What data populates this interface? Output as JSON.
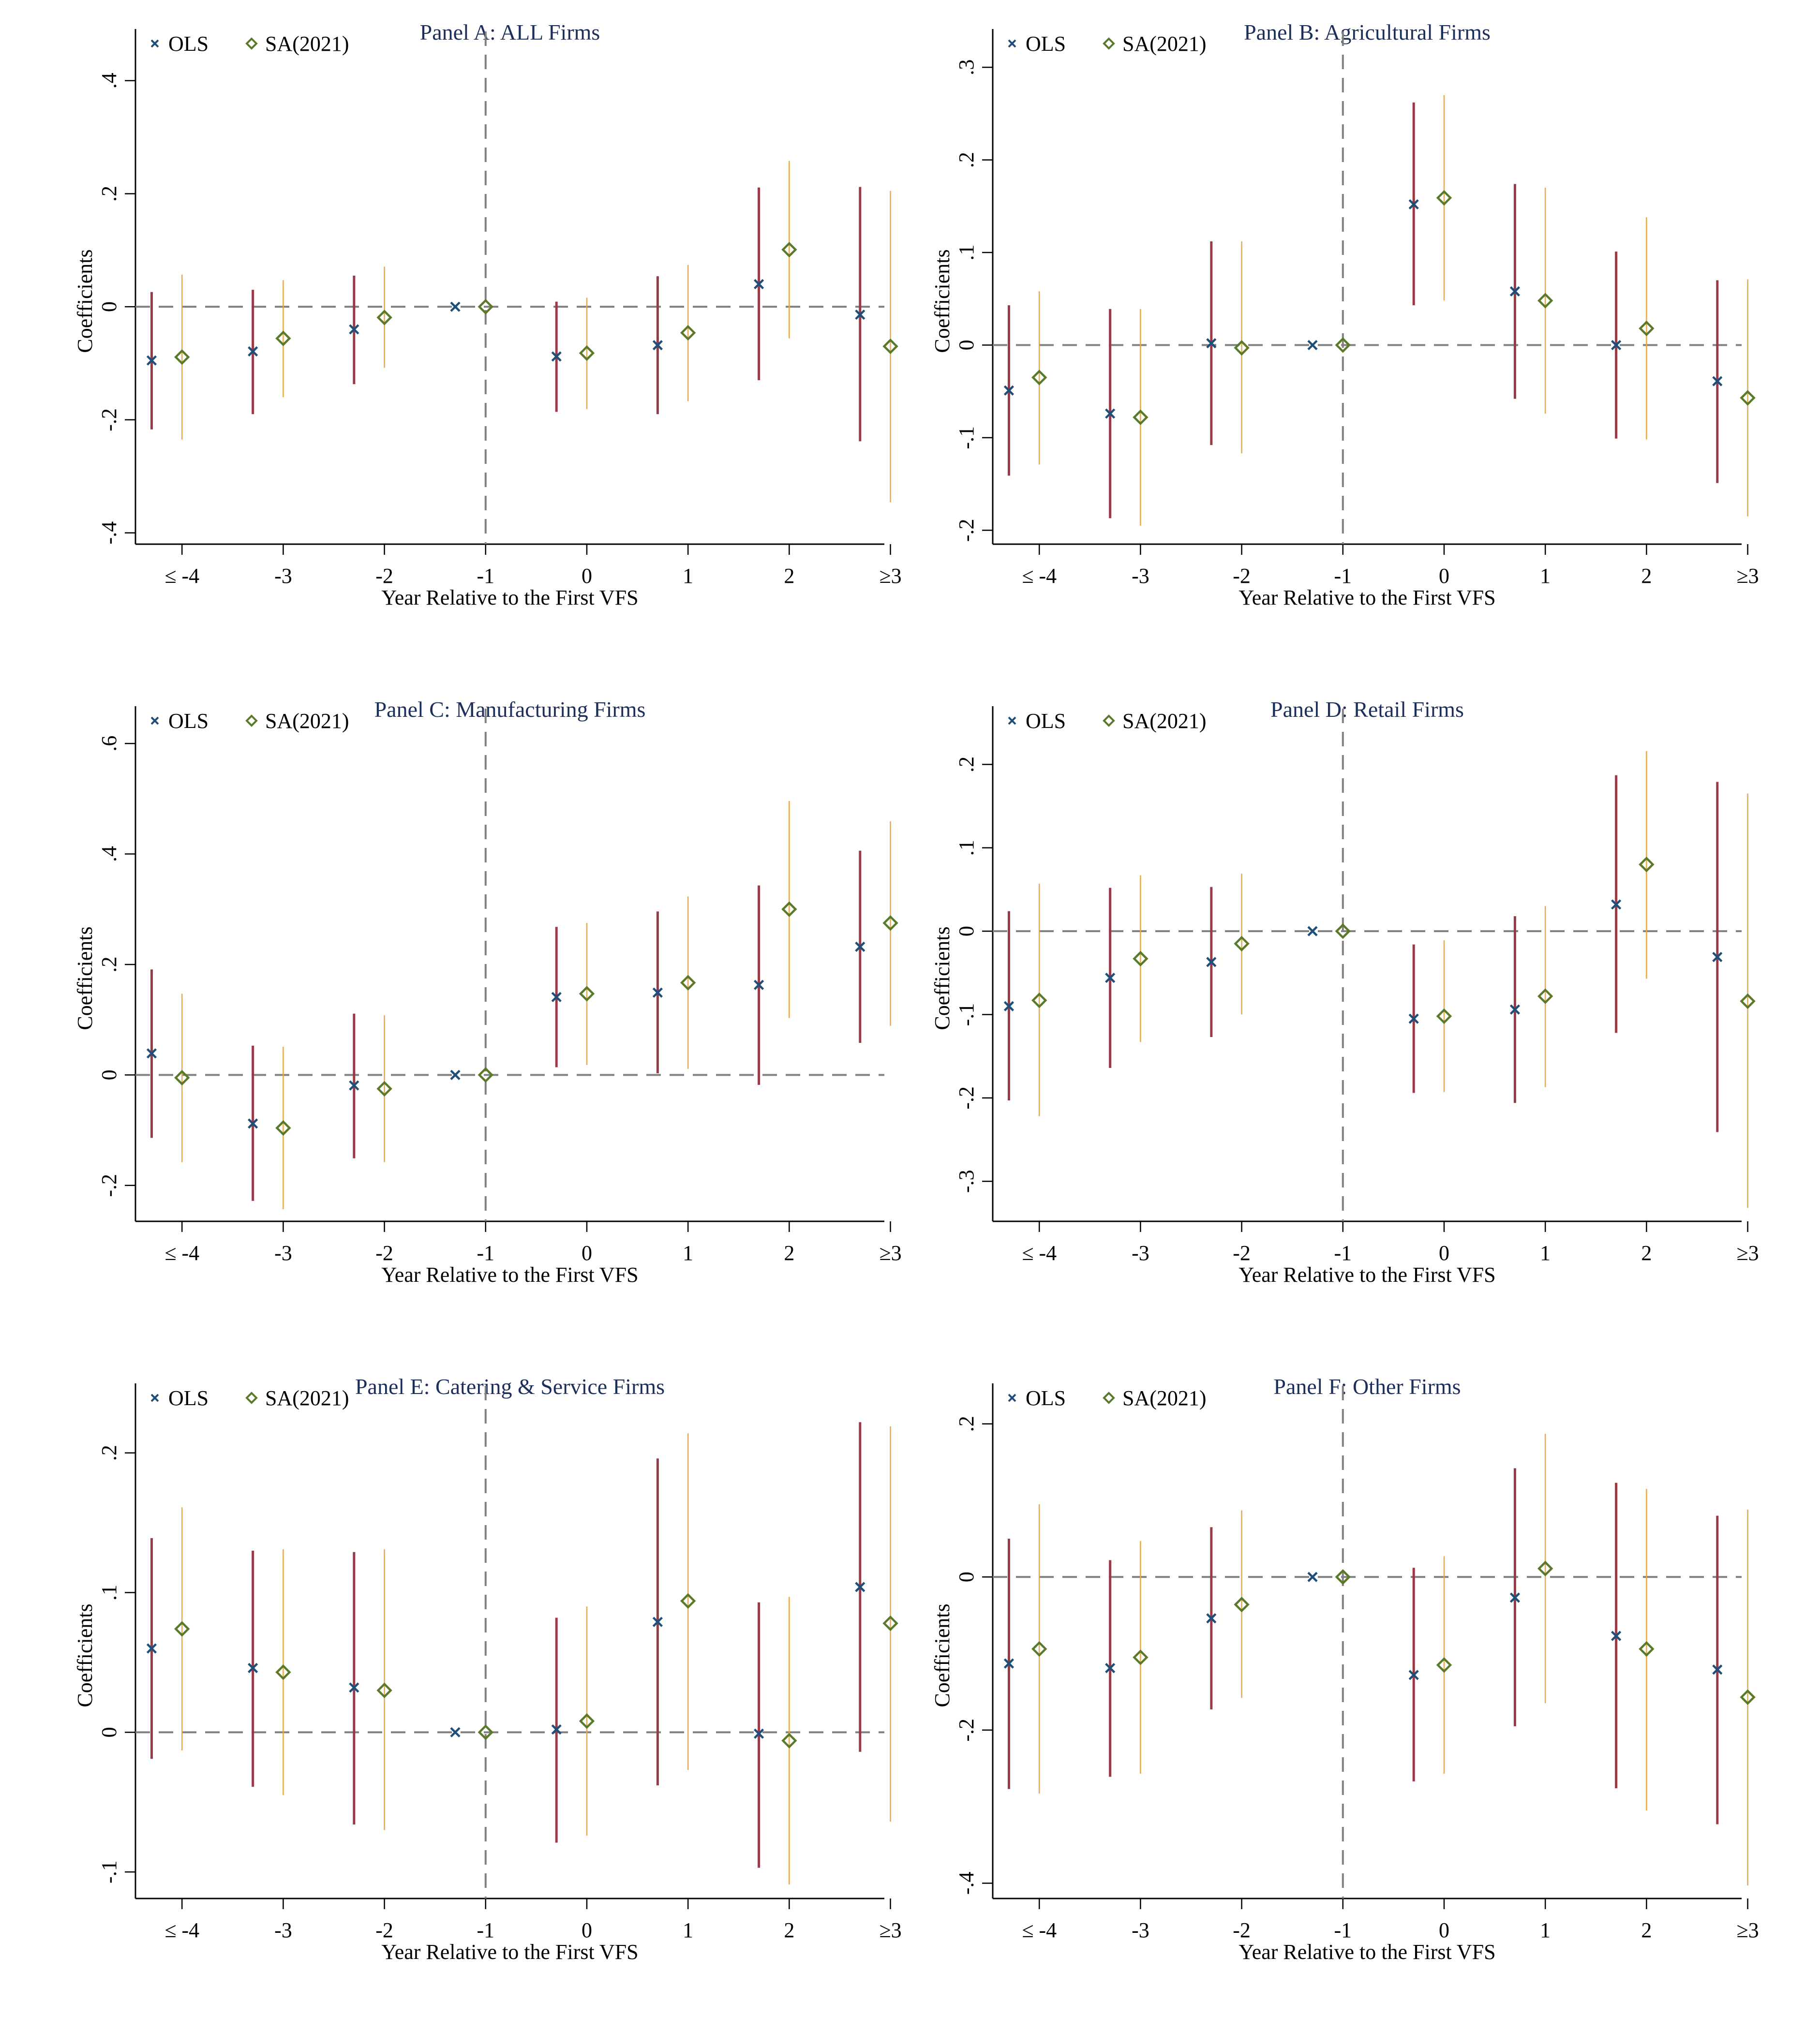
{
  "figure": {
    "colors": {
      "title": "#1c2e5a",
      "ols_marker": "#1f4e79",
      "ols_ci": "#9b3a47",
      "sa_marker": "#5a7a2a",
      "sa_ci": "#e8a84a",
      "ref_line": "#808080"
    }
  },
  "chart_data": [
    {
      "type": "scatter",
      "title": "Panel A: ALL Firms",
      "xlabel": "Year Relative to the First VFS",
      "ylabel": "Coefficients",
      "categories": [
        "≤ -4",
        "-3",
        "-2",
        "-1",
        "0",
        "1",
        "2",
        "≥3"
      ],
      "yticks": [
        0.4,
        0.2,
        0,
        -0.2,
        -0.4
      ],
      "ytick_labels": [
        ".4",
        ".2",
        "0",
        "-.2",
        "-.4"
      ],
      "ylim": [
        -0.42,
        0.44
      ],
      "reference_lines": {
        "y": 0,
        "x_category": "-1"
      },
      "legend": {
        "position": "top-left",
        "entries": [
          "OLS",
          "SA(2021)"
        ]
      },
      "series": [
        {
          "name": "OLS",
          "marker": "x",
          "values": [
            -0.095,
            -0.079,
            -0.04,
            0,
            -0.088,
            -0.068,
            0.04,
            -0.014
          ],
          "ci_upper": [
            0.026,
            0.03,
            0.055,
            null,
            0.009,
            0.054,
            0.211,
            0.212
          ],
          "ci_lower": [
            -0.217,
            -0.19,
            -0.137,
            null,
            -0.186,
            -0.19,
            -0.13,
            -0.238
          ]
        },
        {
          "name": "SA(2021)",
          "marker": "diamond",
          "values": [
            -0.089,
            -0.056,
            -0.019,
            0,
            -0.082,
            -0.046,
            0.101,
            -0.07
          ],
          "ci_upper": [
            0.057,
            0.047,
            0.071,
            null,
            0.016,
            0.074,
            0.258,
            0.205
          ],
          "ci_lower": [
            -0.235,
            -0.16,
            -0.108,
            null,
            -0.181,
            -0.167,
            -0.056,
            -0.346
          ]
        }
      ]
    },
    {
      "type": "scatter",
      "title": "Panel B: Agricultural Firms",
      "xlabel": "Year Relative to the First VFS",
      "ylabel": "Coefficients",
      "categories": [
        "≤ -4",
        "-3",
        "-2",
        "-1",
        "0",
        "1",
        "2",
        "≥3"
      ],
      "yticks": [
        0.3,
        0.2,
        0.1,
        0,
        -0.1,
        -0.2
      ],
      "ytick_labels": [
        ".3",
        ".2",
        ".1",
        "0",
        "-.1",
        "-.2"
      ],
      "ylim": [
        -0.215,
        0.31
      ],
      "reference_lines": {
        "y": 0,
        "x_category": "-1"
      },
      "legend": {
        "position": "top-left",
        "entries": [
          "OLS",
          "SA(2021)"
        ]
      },
      "series": [
        {
          "name": "OLS",
          "marker": "x",
          "values": [
            -0.049,
            -0.074,
            0.002,
            0,
            0.152,
            0.058,
            0.0,
            -0.039
          ],
          "ci_upper": [
            0.043,
            0.039,
            0.112,
            null,
            0.262,
            0.174,
            0.101,
            0.07
          ],
          "ci_lower": [
            -0.141,
            -0.187,
            -0.108,
            null,
            0.043,
            -0.058,
            -0.101,
            -0.149
          ]
        },
        {
          "name": "SA(2021)",
          "marker": "diamond",
          "values": [
            -0.035,
            -0.078,
            -0.003,
            0,
            0.159,
            0.048,
            0.018,
            -0.057
          ],
          "ci_upper": [
            0.058,
            0.039,
            0.112,
            null,
            0.27,
            0.17,
            0.138,
            0.071
          ],
          "ci_lower": [
            -0.129,
            -0.195,
            -0.117,
            null,
            0.048,
            -0.074,
            -0.102,
            -0.185
          ]
        }
      ]
    },
    {
      "type": "scatter",
      "title": "Panel C: Manufacturing Firms",
      "xlabel": "Year Relative to the First VFS",
      "ylabel": "Coefficients",
      "categories": [
        "≤ -4",
        "-3",
        "-2",
        "-1",
        "0",
        "1",
        "2",
        "≥3"
      ],
      "yticks": [
        0.6,
        0.4,
        0.2,
        0,
        -0.2
      ],
      "ytick_labels": [
        ".6",
        ".4",
        ".2",
        "0",
        "-.2"
      ],
      "ylim": [
        -0.265,
        0.615
      ],
      "reference_lines": {
        "y": 0,
        "x_category": "-1"
      },
      "legend": {
        "position": "top-left",
        "entries": [
          "OLS",
          "SA(2021)"
        ]
      },
      "series": [
        {
          "name": "OLS",
          "marker": "x",
          "values": [
            0.039,
            -0.088,
            -0.019,
            0,
            0.141,
            0.149,
            0.163,
            0.232
          ],
          "ci_upper": [
            0.191,
            0.053,
            0.111,
            null,
            0.268,
            0.296,
            0.343,
            0.406
          ],
          "ci_lower": [
            -0.114,
            -0.228,
            -0.151,
            null,
            0.014,
            0.003,
            -0.018,
            0.058
          ]
        },
        {
          "name": "SA(2021)",
          "marker": "diamond",
          "values": [
            -0.005,
            -0.096,
            -0.025,
            0,
            0.147,
            0.167,
            0.3,
            0.275
          ],
          "ci_upper": [
            0.147,
            0.051,
            0.108,
            null,
            0.275,
            0.323,
            0.496,
            0.459
          ],
          "ci_lower": [
            -0.158,
            -0.243,
            -0.158,
            null,
            0.018,
            0.011,
            0.103,
            0.089
          ]
        }
      ]
    },
    {
      "type": "scatter",
      "title": "Panel D: Retail Firms",
      "xlabel": "Year Relative to the First VFS",
      "ylabel": "Coefficients",
      "categories": [
        "≤ -4",
        "-3",
        "-2",
        "-1",
        "0",
        "1",
        "2",
        "≥3"
      ],
      "yticks": [
        0.2,
        0.1,
        0,
        -0.1,
        -0.2,
        -0.3
      ],
      "ytick_labels": [
        ".2",
        ".1",
        "0",
        "-.1",
        "-.2",
        "-.3"
      ],
      "ylim": [
        -0.348,
        0.235
      ],
      "reference_lines": {
        "y": 0,
        "x_category": "-1"
      },
      "legend": {
        "position": "top-left",
        "entries": [
          "OLS",
          "SA(2021)"
        ]
      },
      "series": [
        {
          "name": "OLS",
          "marker": "x",
          "values": [
            -0.09,
            -0.056,
            -0.037,
            0,
            -0.105,
            -0.094,
            0.032,
            -0.031
          ],
          "ci_upper": [
            0.024,
            0.052,
            0.053,
            null,
            -0.016,
            0.018,
            0.187,
            0.179
          ],
          "ci_lower": [
            -0.203,
            -0.164,
            -0.127,
            null,
            -0.194,
            -0.206,
            -0.122,
            -0.241
          ]
        },
        {
          "name": "SA(2021)",
          "marker": "diamond",
          "values": [
            -0.083,
            -0.033,
            -0.015,
            0,
            -0.102,
            -0.078,
            0.08,
            -0.084
          ],
          "ci_upper": [
            0.057,
            0.067,
            0.069,
            null,
            -0.011,
            0.03,
            0.216,
            0.165
          ],
          "ci_lower": [
            -0.222,
            -0.133,
            -0.1,
            null,
            -0.193,
            -0.187,
            -0.057,
            -0.332
          ]
        }
      ]
    },
    {
      "type": "scatter",
      "title": "Panel E: Catering & Service Firms",
      "xlabel": "Year Relative to the First VFS",
      "ylabel": "Coefficients",
      "categories": [
        "≤ -4",
        "-3",
        "-2",
        "-1",
        "0",
        "1",
        "2",
        "≥3"
      ],
      "yticks": [
        0.2,
        0.1,
        0,
        -0.1
      ],
      "ytick_labels": [
        ".2",
        ".1",
        "0",
        "-.1"
      ],
      "ylim": [
        -0.119,
        0.229
      ],
      "reference_lines": {
        "y": 0,
        "x_category": "-1"
      },
      "legend": {
        "position": "top-left",
        "entries": [
          "OLS",
          "SA(2021)"
        ]
      },
      "series": [
        {
          "name": "OLS",
          "marker": "x",
          "values": [
            0.06,
            0.046,
            0.032,
            0,
            0.002,
            0.079,
            -0.001,
            0.104
          ],
          "ci_upper": [
            0.139,
            0.13,
            0.129,
            null,
            0.082,
            0.196,
            0.093,
            0.222
          ],
          "ci_lower": [
            -0.019,
            -0.039,
            -0.066,
            null,
            -0.079,
            -0.038,
            -0.097,
            -0.014
          ]
        },
        {
          "name": "SA(2021)",
          "marker": "diamond",
          "values": [
            0.074,
            0.043,
            0.03,
            0,
            0.008,
            0.094,
            -0.006,
            0.078
          ],
          "ci_upper": [
            0.161,
            0.131,
            0.131,
            null,
            0.09,
            0.214,
            0.097,
            0.219
          ],
          "ci_lower": [
            -0.013,
            -0.045,
            -0.07,
            null,
            -0.074,
            -0.027,
            -0.109,
            -0.064
          ]
        }
      ]
    },
    {
      "type": "scatter",
      "title": "Panel F: Other Firms",
      "xlabel": "Year Relative to the First VFS",
      "ylabel": "Coefficients",
      "categories": [
        "≤ -4",
        "-3",
        "-2",
        "-1",
        "0",
        "1",
        "2",
        "≥3"
      ],
      "yticks": [
        0.2,
        0,
        -0.2,
        -0.4
      ],
      "ytick_labels": [
        ".2",
        "0",
        "-.2",
        "-.4"
      ],
      "ylim": [
        -0.42,
        0.215
      ],
      "reference_lines": {
        "y": 0,
        "x_category": "-1"
      },
      "legend": {
        "position": "top-left",
        "entries": [
          "OLS",
          "SA(2021)"
        ]
      },
      "series": [
        {
          "name": "OLS",
          "marker": "x",
          "values": [
            -0.113,
            -0.119,
            -0.054,
            0,
            -0.128,
            -0.027,
            -0.077,
            -0.121
          ],
          "ci_upper": [
            0.05,
            0.022,
            0.065,
            null,
            0.012,
            0.142,
            0.123,
            0.08
          ],
          "ci_lower": [
            -0.277,
            -0.261,
            -0.173,
            null,
            -0.267,
            -0.195,
            -0.276,
            -0.323
          ]
        },
        {
          "name": "SA(2021)",
          "marker": "diamond",
          "values": [
            -0.094,
            -0.105,
            -0.036,
            0,
            -0.115,
            0.011,
            -0.094,
            -0.157
          ],
          "ci_upper": [
            0.095,
            0.047,
            0.087,
            null,
            0.027,
            0.187,
            0.115,
            0.088
          ],
          "ci_lower": [
            -0.283,
            -0.257,
            -0.158,
            null,
            -0.257,
            -0.165,
            -0.305,
            -0.403
          ]
        }
      ]
    }
  ]
}
